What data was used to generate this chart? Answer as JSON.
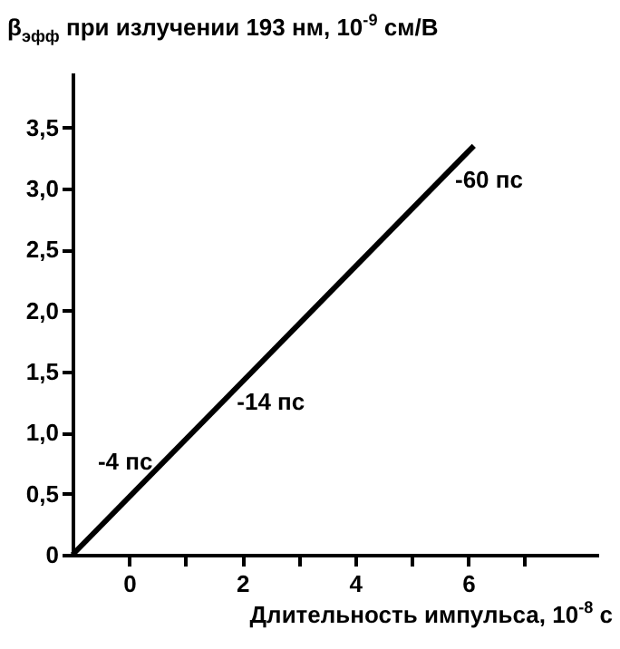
{
  "chart_data": {
    "type": "line",
    "ylabel": "β$_{эфф}$ при излучении 193 нм, 10$^{-9}$ см/В",
    "xlabel": "Длительность импульса, 10$^{-8}$ с",
    "x": [
      -1,
      6.1
    ],
    "series": [
      {
        "color": "#000000",
        "values": [
          0,
          3.35
        ]
      }
    ],
    "xlim": [
      -1,
      8.3
    ],
    "xticks": [
      0,
      {
        "value": 1,
        "label": null
      },
      2,
      {
        "value": 3,
        "label": null
      },
      4,
      {
        "value": 5,
        "label": null
      },
      6,
      {
        "value": 7,
        "label": null
      }
    ],
    "ylim": [
      0,
      3.95
    ],
    "yticks": [
      0,
      {
        "value": 0.5,
        "label": "0,5"
      },
      {
        "value": 1,
        "label": "1,0"
      },
      {
        "value": 1.5,
        "label": "1,5"
      },
      {
        "value": 2,
        "label": "2,0"
      },
      {
        "value": 2.5,
        "label": "2,5"
      },
      {
        "value": 3,
        "label": "3,0"
      },
      {
        "value": 3.5,
        "label": "3,5"
      }
    ],
    "annotations": [
      {
        "text": "-4 пс",
        "x": 0.61,
        "y": 0.76
      },
      {
        "text": "-14 пс",
        "x": 1.65,
        "y": 1.25
      },
      {
        "text": "-60 пс",
        "x": 5.51,
        "y": 3.07
      }
    ],
    "grid": false,
    "marker": "none",
    "line_style": "solid"
  }
}
